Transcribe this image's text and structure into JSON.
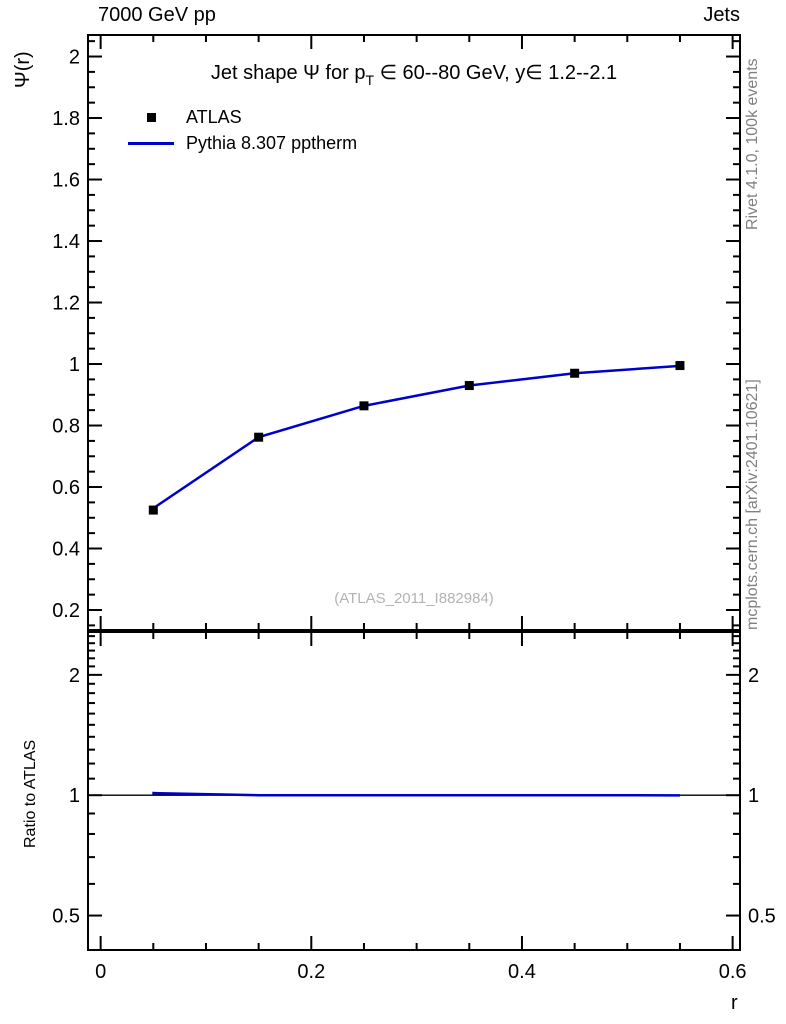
{
  "header": {
    "left_label": "7000 GeV pp",
    "right_label": "Jets"
  },
  "side_texts": {
    "rivet": "Rivet 4.1.0, 100k events",
    "mcplots": "mcplots.cern.ch [arXiv:2401.10621]"
  },
  "chart_data": {
    "type": "line",
    "title_parts": [
      {
        "text": "Jet shape Ψ for p"
      },
      {
        "text": "T",
        "sub": true
      },
      {
        "text": " ∈ 60--80 GeV, y∈ 1.2--2.1"
      }
    ],
    "watermark": "(ATLAS_2011_I882984)",
    "colors": {
      "atlas": "#000000",
      "mc": "#0000cd",
      "watermark": "#b3b3b3",
      "side_text": "#808080"
    },
    "x_axis": {
      "label": "r",
      "lim": [
        -0.012,
        0.607
      ],
      "major_ticks": [
        0,
        0.2,
        0.4,
        0.6
      ],
      "tick_labels": [
        "0",
        "0.2",
        "0.4",
        "0.6"
      ],
      "minor_step": 0.05
    },
    "main_axis": {
      "label": "Ψ(r)",
      "scale": "linear",
      "lim": [
        0.135,
        2.07
      ],
      "major_ticks": [
        0.2,
        0.4,
        0.6,
        0.8,
        1,
        1.2,
        1.4,
        1.6,
        1.8,
        2
      ],
      "tick_labels": [
        "0.2",
        "0.4",
        "0.6",
        "0.8",
        "1",
        "1.2",
        "1.4",
        "1.6",
        "1.8",
        "2"
      ],
      "minor_step": 0.05
    },
    "ratio_axis": {
      "label": "Ratio to ATLAS",
      "scale": "log",
      "lim": [
        0.41,
        2.56
      ],
      "major_ticks": [
        0.5,
        1,
        2
      ],
      "tick_labels": [
        "0.5",
        "1",
        "2"
      ],
      "minor_ticks": [
        0.6,
        0.7,
        0.8,
        0.9,
        1.1,
        1.2,
        1.3,
        1.4,
        1.5,
        1.6,
        1.7,
        1.8,
        1.9,
        2.1,
        2.2,
        2.3,
        2.4,
        2.5
      ],
      "ref_line": 1
    },
    "x_values": [
      0.05,
      0.15,
      0.25,
      0.35,
      0.45,
      0.55
    ],
    "series": [
      {
        "name": "ATLAS",
        "style": "marker-square",
        "color": "#000000",
        "values": [
          0.525,
          0.762,
          0.864,
          0.93,
          0.97,
          0.995
        ],
        "yerr": [
          0.01,
          0.008,
          0.006,
          0.005,
          0.004,
          0.003
        ]
      },
      {
        "name": "Pythia 8.307 pptherm",
        "style": "line",
        "color": "#0000cd",
        "values": [
          0.531,
          0.762,
          0.864,
          0.93,
          0.97,
          0.994
        ]
      }
    ],
    "ratio": {
      "values": [
        1.012,
        1.0,
        1.0,
        1.0,
        1.0,
        0.999
      ],
      "yerr": [
        0.008,
        0.005,
        0.004,
        0.004,
        0.003,
        0.003
      ]
    },
    "legend": [
      {
        "label": "ATLAS",
        "symbol": "square"
      },
      {
        "label": "Pythia 8.307 pptherm",
        "symbol": "line"
      }
    ]
  }
}
